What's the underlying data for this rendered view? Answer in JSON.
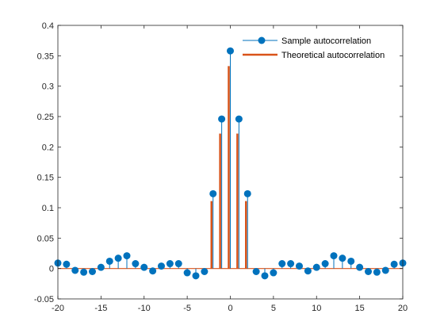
{
  "colors": {
    "sample": "#0072BD",
    "theoretical": "#D95319",
    "axis": "#262626",
    "background": "#ffffff"
  },
  "chart_data": {
    "type": "stem",
    "xlim": [
      -20,
      20
    ],
    "ylim": [
      -0.05,
      0.4
    ],
    "xticks": [
      -20,
      -15,
      -10,
      -5,
      0,
      5,
      10,
      15,
      20
    ],
    "yticks": [
      -0.05,
      0,
      0.05,
      0.1,
      0.15,
      0.2,
      0.25,
      0.3,
      0.35,
      0.4
    ],
    "xtick_labels": [
      "-20",
      "-15",
      "-10",
      "-5",
      "0",
      "5",
      "10",
      "15",
      "20"
    ],
    "ytick_labels": [
      "-0.05",
      "0",
      "0.05",
      "0.1",
      "0.15",
      "0.2",
      "0.25",
      "0.3",
      "0.35",
      "0.4"
    ],
    "grid": false,
    "legend_position": "top-right",
    "x": [
      -20,
      -19,
      -18,
      -17,
      -16,
      -15,
      -14,
      -13,
      -12,
      -11,
      -10,
      -9,
      -8,
      -7,
      -6,
      -5,
      -4,
      -3,
      -2,
      -1,
      0,
      1,
      2,
      3,
      4,
      5,
      6,
      7,
      8,
      9,
      10,
      11,
      12,
      13,
      14,
      15,
      16,
      17,
      18,
      19,
      20
    ],
    "series": [
      {
        "name": "Sample autocorrelation",
        "style": "stem-marker",
        "values": [
          0.009,
          0.007,
          -0.003,
          -0.006,
          -0.005,
          0.002,
          0.012,
          0.017,
          0.021,
          0.008,
          0.002,
          -0.004,
          0.004,
          0.008,
          0.008,
          -0.007,
          -0.012,
          -0.005,
          0.123,
          0.246,
          0.358,
          0.246,
          0.123,
          -0.005,
          -0.012,
          -0.007,
          0.008,
          0.008,
          0.004,
          -0.004,
          0.002,
          0.008,
          0.021,
          0.017,
          0.012,
          0.002,
          -0.005,
          -0.006,
          -0.003,
          0.007,
          0.009
        ]
      },
      {
        "name": "Theoretical autocorrelation",
        "style": "stem-line",
        "values": [
          0,
          0,
          0,
          0,
          0,
          0,
          0,
          0,
          0,
          0,
          0,
          0,
          0,
          0,
          0,
          0,
          0,
          0,
          0.111,
          0.222,
          0.333,
          0.222,
          0.111,
          0,
          0,
          0,
          0,
          0,
          0,
          0,
          0,
          0,
          0,
          0,
          0,
          0,
          0,
          0,
          0,
          0,
          0
        ]
      }
    ]
  }
}
